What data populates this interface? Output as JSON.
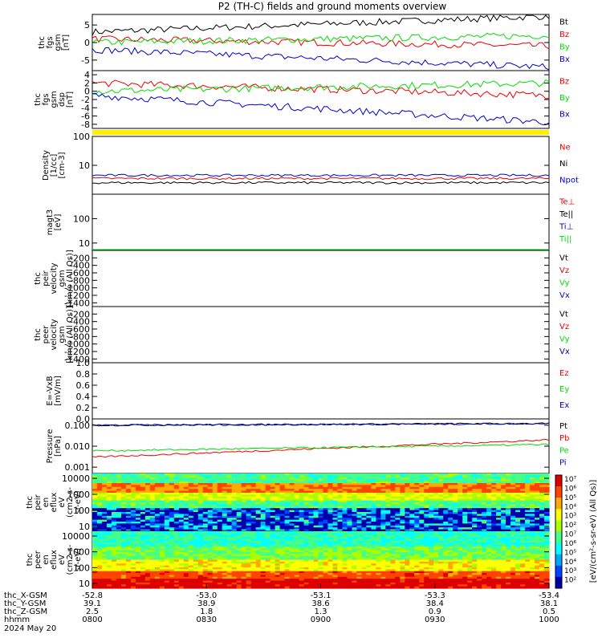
{
  "title": "P2 (TH-C) fields and ground moments overview",
  "colors": {
    "black": "#000000",
    "red": "#ee0000",
    "green": "#00dd00",
    "blue": "#0000cc",
    "yellow": "#ffee00"
  },
  "chart_data": [
    {
      "type": "line",
      "ylabel": [
        "thc",
        "fgs",
        "gsm",
        "[nT]"
      ],
      "yticks": [
        "5",
        "0",
        "-5"
      ],
      "ylim": [
        -8,
        8
      ],
      "series": [
        {
          "name": "Bt",
          "color": "black",
          "start": 3,
          "end": 7.5
        },
        {
          "name": "Bz",
          "color": "red",
          "start": 1,
          "end": -1
        },
        {
          "name": "By",
          "color": "green",
          "start": 0,
          "end": 2
        },
        {
          "name": "Bx",
          "color": "blue",
          "start": -2,
          "end": -7
        }
      ]
    },
    {
      "type": "line",
      "ylabel": [
        "thc",
        "fgs",
        "gsm",
        "dsp",
        "[nT]"
      ],
      "yticks": [
        "4",
        "2",
        "0",
        "-2",
        "-4",
        "-6",
        "-8"
      ],
      "ylim": [
        -9,
        5
      ],
      "series": [
        {
          "name": "Bz",
          "color": "red",
          "start": 2,
          "end": -1
        },
        {
          "name": "By",
          "color": "green",
          "start": 0,
          "end": 2
        },
        {
          "name": "Bx",
          "color": "blue",
          "start": -1,
          "end": -7.5
        }
      ]
    },
    {
      "type": "line",
      "ylabel": [
        "Density",
        "[1/cc]",
        "[cm-3]"
      ],
      "yticks": [
        "100",
        "10"
      ],
      "ylim": [
        1,
        100
      ],
      "log": true,
      "series": [
        {
          "name": "Ne",
          "color": "red",
          "start": 3.5,
          "end": 3.5
        },
        {
          "name": "Ni",
          "color": "black",
          "start": 2.5,
          "end": 2.5
        },
        {
          "name": "Npot",
          "color": "blue",
          "start": 4.5,
          "end": 4.5
        }
      ]
    },
    {
      "type": "line",
      "ylabel": [
        "magt3",
        "[eV]"
      ],
      "yticks": [
        "100",
        "10"
      ],
      "ylim": [
        5,
        1000
      ],
      "log": true,
      "series": [
        {
          "name": "Te⊥",
          "color": "red",
          "start": 1,
          "end": 1
        },
        {
          "name": "Te||",
          "color": "black",
          "start": 1,
          "end": 1
        },
        {
          "name": "Ti⊥",
          "color": "blue",
          "start": 1,
          "end": 1
        },
        {
          "name": "Ti||",
          "color": "green",
          "start": 1,
          "end": 1
        }
      ]
    },
    {
      "type": "line",
      "ylabel": [
        "thc",
        "peir",
        "velocity",
        "gsm",
        "[km/s (All Qs)]"
      ],
      "yticks": [
        "-200",
        "-400",
        "-600",
        "-800",
        "-1000",
        "-1200",
        "-1400"
      ],
      "ylim": [
        -1500,
        0
      ],
      "series": [
        {
          "name": "Vt",
          "color": "black"
        },
        {
          "name": "Vz",
          "color": "red"
        },
        {
          "name": "Vy",
          "color": "green"
        },
        {
          "name": "Vx",
          "color": "blue"
        }
      ]
    },
    {
      "type": "line",
      "ylabel": [
        "thc",
        "peer",
        "velocity",
        "gsm",
        "[km/s (All Qs)]"
      ],
      "yticks": [
        "-200",
        "-400",
        "-600",
        "-800",
        "-1000",
        "-1200",
        "-1400"
      ],
      "ylim": [
        -1500,
        0
      ],
      "series": [
        {
          "name": "Vt",
          "color": "black"
        },
        {
          "name": "Vz",
          "color": "red"
        },
        {
          "name": "Vy",
          "color": "green"
        },
        {
          "name": "Vx",
          "color": "blue"
        }
      ]
    },
    {
      "type": "line",
      "ylabel": [
        "E=-VxB",
        "[mV/m]"
      ],
      "yticks": [
        "1.0",
        "0.8",
        "0.6",
        "0.4",
        "0.2",
        "0.0"
      ],
      "ylim": [
        0,
        1
      ],
      "series": [
        {
          "name": "Ez",
          "color": "red"
        },
        {
          "name": "Ey",
          "color": "green"
        },
        {
          "name": "Ex",
          "color": "blue"
        }
      ]
    },
    {
      "type": "line",
      "ylabel": [
        "Pressure",
        "[nPa]"
      ],
      "yticks": [
        "0.100",
        "0.010",
        "0.001"
      ],
      "ylim": [
        0.0005,
        0.2
      ],
      "log": true,
      "series": [
        {
          "name": "Pt",
          "color": "black",
          "start": 0.1,
          "end": 0.12
        },
        {
          "name": "Pb",
          "color": "red",
          "start": 0.003,
          "end": 0.02
        },
        {
          "name": "Pe",
          "color": "green",
          "start": 0.006,
          "end": 0.012
        },
        {
          "name": "Pi",
          "color": "blue",
          "start": 0.1,
          "end": 0.12
        }
      ]
    },
    {
      "type": "heatmap",
      "ylabel": [
        "thc",
        "peir",
        "en",
        "eflux",
        "eV",
        "(cm2-s-",
        "sr-eV)"
      ],
      "yticks": [
        "10000",
        "1000",
        "100",
        "10"
      ],
      "ylim": [
        5,
        20000
      ],
      "log": true
    },
    {
      "type": "heatmap",
      "ylabel": [
        "thc",
        "peer",
        "en",
        "eflux",
        "eV",
        "(cm2-s-",
        "sr-eV)"
      ],
      "yticks": [
        "10000",
        "1000",
        "100",
        "10"
      ],
      "ylim": [
        5,
        20000
      ],
      "log": true
    }
  ],
  "colorbar": {
    "ticks": [
      "10⁷",
      "10⁶",
      "10⁵",
      "10⁴",
      "10³",
      "10²",
      "10⁷",
      "10⁶",
      "10⁵",
      "10⁴",
      "10³",
      "10²"
    ],
    "label": "[eV/(cm²-s-sr-eV) (All Qs)]"
  },
  "x_axis": {
    "rows": [
      {
        "label": "thc_X-GSM",
        "values": [
          "-52.8",
          "-53.0",
          "-53.1",
          "-53.3",
          "-53.4"
        ]
      },
      {
        "label": "thc_Y-GSM",
        "values": [
          "39.1",
          "38.9",
          "38.6",
          "38.4",
          "38.1"
        ]
      },
      {
        "label": "thc_Z-GSM",
        "values": [
          "2.5",
          "1.8",
          "1.3",
          "0.9",
          "0.5"
        ]
      },
      {
        "label": "hhmm",
        "values": [
          "0800",
          "0830",
          "0900",
          "0930",
          "1000"
        ]
      }
    ],
    "date": "2024 May 20"
  }
}
